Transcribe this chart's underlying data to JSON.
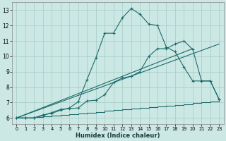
{
  "xlabel": "Humidex (Indice chaleur)",
  "xlim": [
    -0.5,
    23.5
  ],
  "ylim": [
    5.6,
    13.5
  ],
  "xticks": [
    0,
    1,
    2,
    3,
    4,
    5,
    6,
    7,
    8,
    9,
    10,
    11,
    12,
    13,
    14,
    15,
    16,
    17,
    18,
    19,
    20,
    21,
    22,
    23
  ],
  "yticks": [
    6,
    7,
    8,
    9,
    10,
    11,
    12,
    13
  ],
  "bg_color": "#cce8e4",
  "grid_color": "#aacfca",
  "line_color": "#1a6b6b",
  "line1_x": [
    0,
    1,
    2,
    3,
    4,
    5,
    6,
    7,
    8,
    9,
    10,
    11,
    12,
    13,
    14,
    15,
    16,
    17,
    18,
    19,
    20,
    21,
    22,
    23
  ],
  "line1_y": [
    6.0,
    6.0,
    6.0,
    6.2,
    6.3,
    6.5,
    6.65,
    7.05,
    8.5,
    9.9,
    11.5,
    11.5,
    12.5,
    13.1,
    12.75,
    12.1,
    12.0,
    10.6,
    10.3,
    9.3,
    8.4,
    8.4,
    8.4,
    7.2
  ],
  "line2_x": [
    0,
    1,
    2,
    3,
    4,
    5,
    6,
    7,
    8,
    9,
    10,
    11,
    12,
    13,
    14,
    15,
    16,
    17,
    18,
    19,
    20,
    21,
    22,
    23
  ],
  "line2_y": [
    6.0,
    6.0,
    6.0,
    6.15,
    6.35,
    6.55,
    6.6,
    6.65,
    7.1,
    7.15,
    7.5,
    8.3,
    8.6,
    8.7,
    9.0,
    10.0,
    10.5,
    10.5,
    10.8,
    11.0,
    10.45,
    8.4,
    8.4,
    7.2
  ],
  "line3_x": [
    0,
    23
  ],
  "line3_y": [
    6.0,
    10.8
  ],
  "line4_x": [
    0,
    20
  ],
  "line4_y": [
    6.0,
    10.5
  ],
  "line5_x": [
    0,
    1,
    2,
    3,
    4,
    5,
    6,
    7,
    8,
    9,
    10,
    11,
    12,
    13,
    14,
    15,
    16,
    17,
    18,
    19,
    20,
    21,
    22,
    23
  ],
  "line5_y": [
    6.0,
    6.0,
    6.05,
    6.1,
    6.15,
    6.2,
    6.25,
    6.3,
    6.35,
    6.4,
    6.45,
    6.5,
    6.55,
    6.6,
    6.65,
    6.7,
    6.75,
    6.8,
    6.85,
    6.9,
    6.95,
    7.0,
    7.05,
    7.2
  ]
}
